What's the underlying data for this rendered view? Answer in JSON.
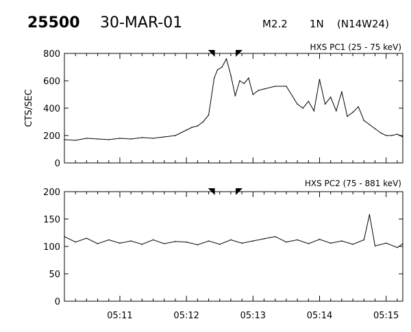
{
  "header": {
    "event_id": "25500",
    "date": "30-MAR-01",
    "flare_class": "M2.2",
    "importance": "1N",
    "location": "(N14W24)"
  },
  "chart_data": [
    {
      "type": "line",
      "title": "HXS PC1 (25 - 75 keV)",
      "ylabel": "CTS/SEC",
      "xlabel": "",
      "xlim": [
        "05:10:10",
        "05:15:15"
      ],
      "ylim": [
        0,
        800
      ],
      "yticks": [
        0,
        200,
        400,
        600,
        800
      ],
      "xticks": [
        "05:11",
        "05:12",
        "05:13",
        "05:14",
        "05:15"
      ],
      "markers_time": [
        "05:12:25",
        "05:12:45"
      ],
      "series": [
        {
          "x": [
            "05:10:10",
            "05:10:20",
            "05:10:30",
            "05:10:40",
            "05:10:50",
            "05:11:00",
            "05:11:10",
            "05:11:20",
            "05:11:30",
            "05:11:40",
            "05:11:50",
            "05:12:00",
            "05:12:05",
            "05:12:10",
            "05:12:15",
            "05:12:20",
            "05:12:25",
            "05:12:28",
            "05:12:32",
            "05:12:36",
            "05:12:40",
            "05:12:44",
            "05:12:48",
            "05:12:52",
            "05:12:56",
            "05:13:00",
            "05:13:05",
            "05:13:10",
            "05:13:20",
            "05:13:30",
            "05:13:40",
            "05:13:45",
            "05:13:50",
            "05:13:55",
            "05:14:00",
            "05:14:05",
            "05:14:10",
            "05:14:15",
            "05:14:20",
            "05:14:25",
            "05:14:30",
            "05:14:35",
            "05:14:40",
            "05:14:45",
            "05:14:50",
            "05:14:55",
            "05:15:00",
            "05:15:05",
            "05:15:10",
            "05:15:15"
          ],
          "y": [
            170,
            165,
            180,
            175,
            170,
            180,
            175,
            185,
            180,
            190,
            200,
            240,
            260,
            270,
            300,
            350,
            620,
            680,
            700,
            760,
            640,
            490,
            600,
            580,
            620,
            500,
            530,
            540,
            560,
            560,
            430,
            400,
            450,
            380,
            610,
            430,
            480,
            380,
            520,
            340,
            370,
            410,
            310,
            280,
            250,
            220,
            200,
            200,
            210,
            190
          ]
        }
      ]
    },
    {
      "type": "line",
      "title": "HXS PC2 (75 - 881 keV)",
      "ylabel": "",
      "xlabel": "",
      "xlim": [
        "05:10:10",
        "05:15:15"
      ],
      "ylim": [
        0,
        200
      ],
      "yticks": [
        0,
        50,
        100,
        150,
        200
      ],
      "xticks": [
        "05:11",
        "05:12",
        "05:13",
        "05:14",
        "05:15"
      ],
      "markers_time": [
        "05:12:25",
        "05:12:45"
      ],
      "series": [
        {
          "x": [
            "05:10:10",
            "05:10:20",
            "05:10:30",
            "05:10:40",
            "05:10:50",
            "05:11:00",
            "05:11:10",
            "05:11:20",
            "05:11:30",
            "05:11:40",
            "05:11:50",
            "05:12:00",
            "05:12:10",
            "05:12:20",
            "05:12:30",
            "05:12:40",
            "05:12:50",
            "05:13:00",
            "05:13:10",
            "05:13:20",
            "05:13:30",
            "05:13:40",
            "05:13:50",
            "05:14:00",
            "05:14:10",
            "05:14:20",
            "05:14:30",
            "05:14:40",
            "05:14:45",
            "05:14:50",
            "05:15:00",
            "05:15:10",
            "05:15:15"
          ],
          "y": [
            118,
            108,
            115,
            105,
            112,
            106,
            110,
            104,
            112,
            105,
            109,
            108,
            103,
            110,
            104,
            112,
            106,
            110,
            114,
            118,
            108,
            112,
            105,
            113,
            106,
            110,
            104,
            112,
            158,
            101,
            106,
            98,
            105
          ]
        }
      ]
    }
  ]
}
